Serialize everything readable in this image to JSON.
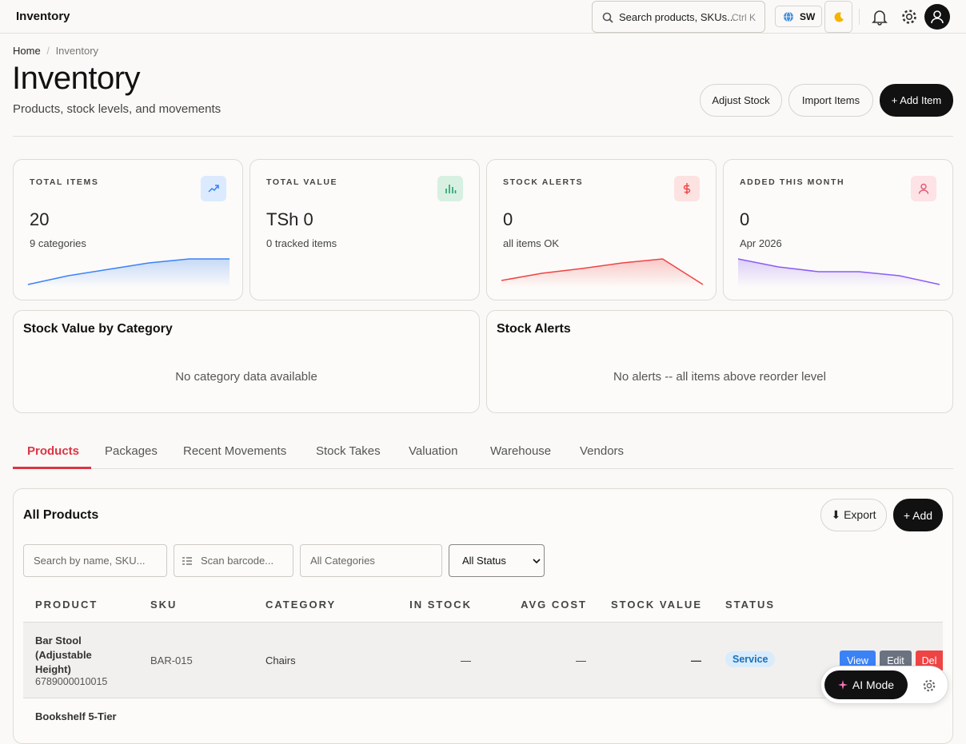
{
  "topbar": {
    "title": "Inventory",
    "search_placeholder": "Search products, SKUs...",
    "search_shortcut": "Ctrl K",
    "language": "SW"
  },
  "breadcrumb": [
    "Home",
    "Inventory"
  ],
  "header": {
    "title": "Inventory",
    "subtitle": "Products, stock levels, and movements",
    "actions": [
      "Adjust Stock",
      "Import Items",
      "+ Add Item"
    ]
  },
  "stats": [
    {
      "label": "TOTAL ITEMS",
      "value": "20",
      "note": "9 categories",
      "color": "#3b82f6",
      "trend": [
        0,
        11,
        19,
        27,
        32,
        32
      ]
    },
    {
      "label": "TOTAL VALUE",
      "value": "TSh 0",
      "note": "0 tracked items",
      "color": "#22a06b"
    },
    {
      "label": "STOCK ALERTS",
      "value": "0",
      "note": "all items OK",
      "color": "#ef4444",
      "trend": [
        5,
        14,
        20,
        27,
        32,
        0
      ]
    },
    {
      "label": "ADDED THIS MONTH",
      "value": "0",
      "note": "Apr 2026",
      "color": "#8b5cf6",
      "trend": [
        32,
        22,
        16,
        16,
        11,
        0
      ]
    }
  ],
  "panels": [
    {
      "title": "Stock Value by Category",
      "empty": "No category data available"
    },
    {
      "title": "Stock Alerts",
      "empty": "No alerts -- all items above reorder level"
    }
  ],
  "tabs": [
    "Products",
    "Packages",
    "Recent Movements",
    "Stock Takes",
    "Valuation",
    "Warehouse",
    "Vendors"
  ],
  "products": {
    "title": "All Products",
    "actions": [
      "⬇ Export",
      "+ Add"
    ],
    "filters": [
      "Search by name, SKU...",
      "Scan barcode...",
      "All Categories",
      "All Status"
    ],
    "columns": [
      "PRODUCT",
      "SKU",
      "CATEGORY",
      "IN STOCK",
      "AVG COST",
      "STOCK VALUE",
      "STATUS"
    ],
    "rows": [
      {
        "name": "Bar Stool (Adjustable Height)",
        "barcode": "6789000010015",
        "sku": "BAR-015",
        "category": "Chairs",
        "in_stock": "—",
        "avg_cost": "—",
        "stock_value": "—",
        "status": "Service",
        "row_actions": [
          "View",
          "Edit",
          "Del"
        ]
      },
      {
        "name": "Bookshelf 5-Tier"
      }
    ]
  },
  "assistant": {
    "label": "AI Mode"
  }
}
